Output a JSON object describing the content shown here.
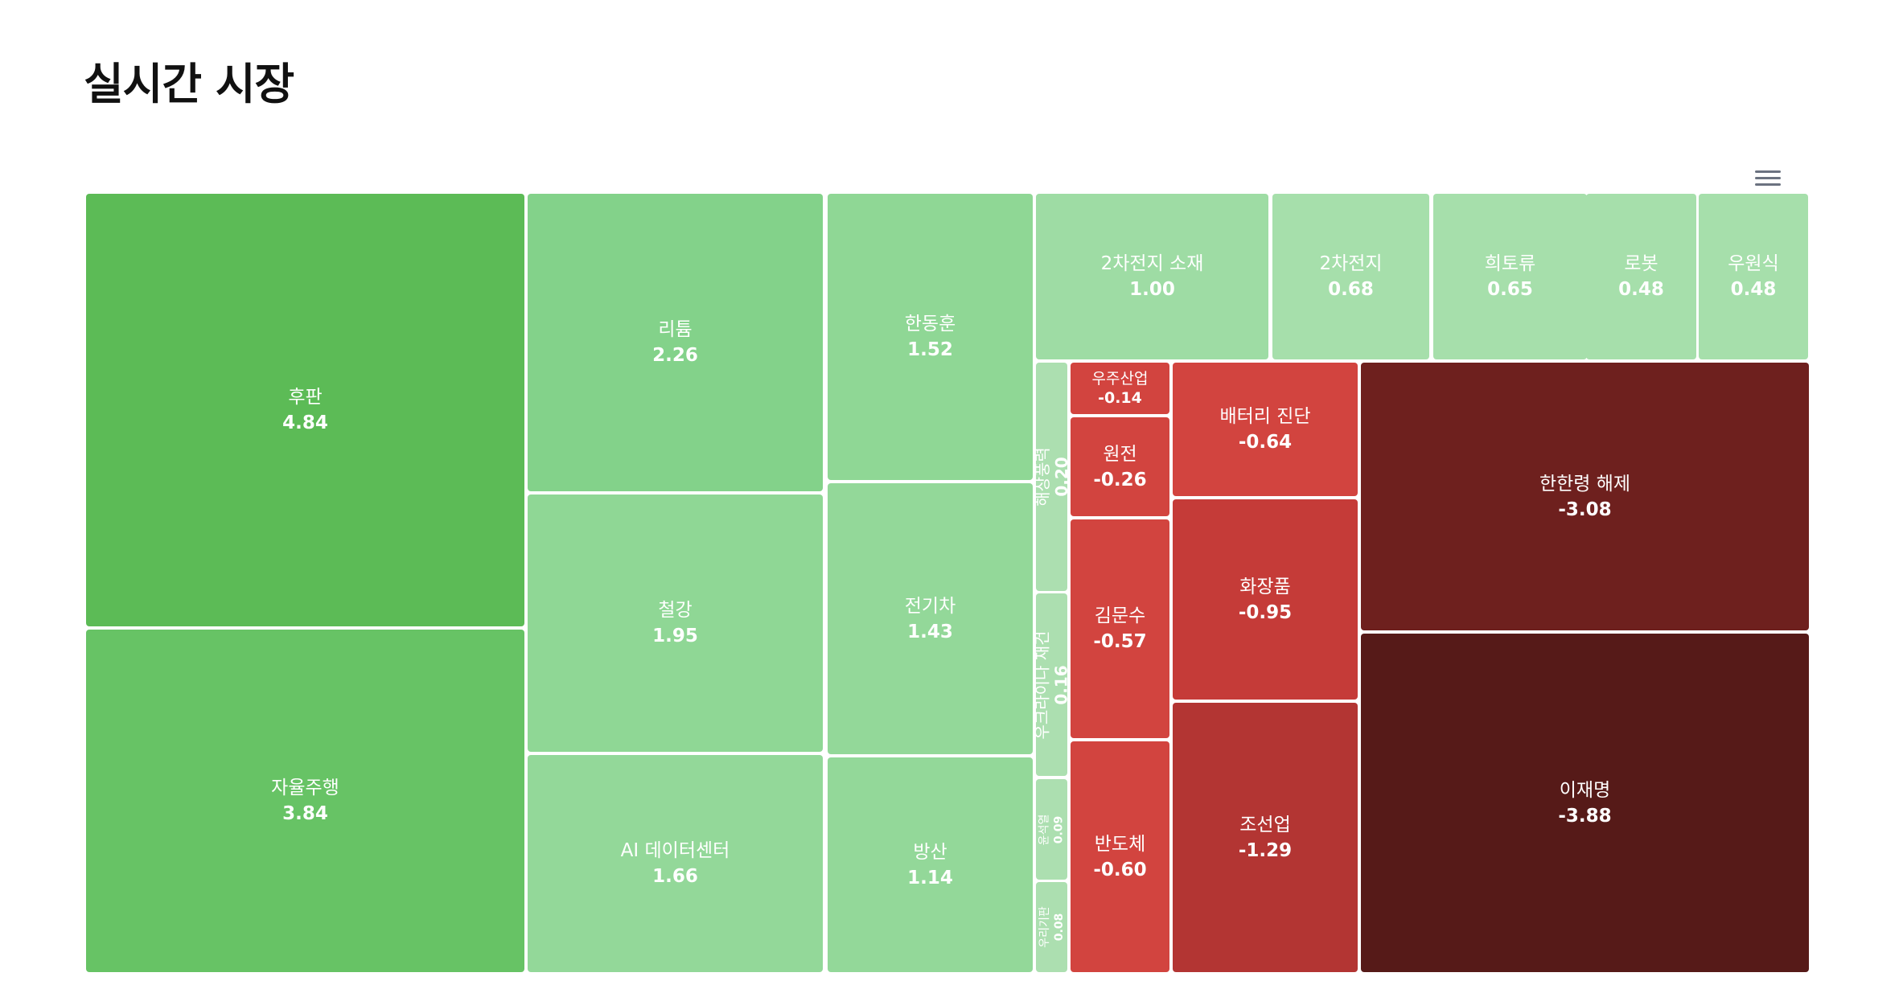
{
  "page": {
    "title": "실시간 시장"
  },
  "toolbar": {
    "menu_icon": "hamburger-menu-icon"
  },
  "colors": {
    "pos_1": "#5cbb56",
    "pos_2": "#67c365",
    "pos_3": "#83d28a",
    "pos_4": "#8fd795",
    "pos_5": "#93d899",
    "pos_6": "#9edca4",
    "pos_7": "#a6dfab",
    "pos_8": "#acdfb0",
    "neg_1": "#d2443f",
    "neg_2": "#c53b38",
    "neg_3": "#b33533",
    "neg_4": "#6e201e",
    "neg_5": "#561a18"
  },
  "chart_data": {
    "type": "treemap",
    "title": "실시간 시장",
    "items": [
      {
        "name": "후판",
        "value": 4.84,
        "label": "4.84"
      },
      {
        "name": "자율주행",
        "value": 3.84,
        "label": "3.84"
      },
      {
        "name": "리튬",
        "value": 2.26,
        "label": "2.26"
      },
      {
        "name": "철강",
        "value": 1.95,
        "label": "1.95"
      },
      {
        "name": "AI 데이터센터",
        "value": 1.66,
        "label": "1.66"
      },
      {
        "name": "한동훈",
        "value": 1.52,
        "label": "1.52"
      },
      {
        "name": "전기차",
        "value": 1.43,
        "label": "1.43"
      },
      {
        "name": "방산",
        "value": 1.14,
        "label": "1.14"
      },
      {
        "name": "2차전지 소재",
        "value": 1.0,
        "label": "1.00"
      },
      {
        "name": "2차전지",
        "value": 0.68,
        "label": "0.68"
      },
      {
        "name": "희토류",
        "value": 0.65,
        "label": "0.65"
      },
      {
        "name": "로봇",
        "value": 0.48,
        "label": "0.48"
      },
      {
        "name": "우원식",
        "value": 0.48,
        "label": "0.48"
      },
      {
        "name": "해상풍력",
        "value": 0.2,
        "label": "0.20"
      },
      {
        "name": "우크라이나 재건",
        "value": 0.16,
        "label": "0.16"
      },
      {
        "name": "윤석열",
        "value": 0.09,
        "label": "0.09"
      },
      {
        "name": "우리기판",
        "value": 0.08,
        "label": "0.08"
      },
      {
        "name": "우주산업",
        "value": -0.14,
        "label": "-0.14"
      },
      {
        "name": "원전",
        "value": -0.26,
        "label": "-0.26"
      },
      {
        "name": "김문수",
        "value": -0.57,
        "label": "-0.57"
      },
      {
        "name": "반도체",
        "value": -0.6,
        "label": "-0.60"
      },
      {
        "name": "배터리 진단",
        "value": -0.64,
        "label": "-0.64"
      },
      {
        "name": "화장품",
        "value": -0.95,
        "label": "-0.95"
      },
      {
        "name": "조선업",
        "value": -1.29,
        "label": "-1.29"
      },
      {
        "name": "한한령 해제",
        "value": -3.08,
        "label": "-3.08"
      },
      {
        "name": "이재명",
        "value": -3.88,
        "label": "-3.88"
      }
    ]
  }
}
